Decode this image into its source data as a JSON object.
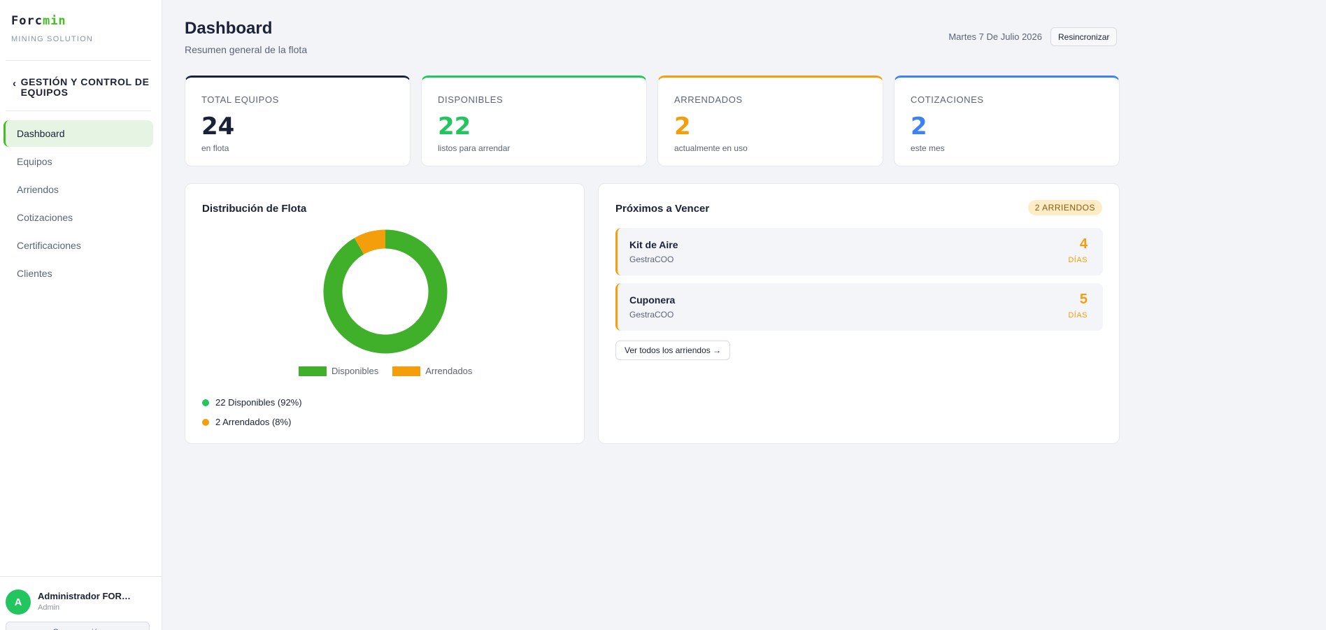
{
  "sidebar": {
    "logo_main": "Forc",
    "logo_accent": "min",
    "logo_sub": "MINING SOLUTION",
    "module_label": "GESTIÓN Y CONTROL DE EQUIPOS",
    "items": [
      {
        "label": "Dashboard",
        "active": true
      },
      {
        "label": "Equipos"
      },
      {
        "label": "Arriendos"
      },
      {
        "label": "Cotizaciones"
      },
      {
        "label": "Certificaciones"
      },
      {
        "label": "Clientes"
      }
    ],
    "user": {
      "initial": "A",
      "name": "Administrador FORC...",
      "role": "Admin",
      "logout_label": "Cerrar sesión"
    }
  },
  "header": {
    "title": "Dashboard",
    "subtitle": "Resumen general de la flota",
    "date": "Martes 7 De Julio 2026",
    "resync_label": "Resincronizar"
  },
  "stats": [
    {
      "label": "TOTAL EQUIPOS",
      "value": "24",
      "note": "en flota",
      "color": "#1a2138"
    },
    {
      "label": "DISPONIBLES",
      "value": "22",
      "note": "listos para arrendar",
      "color": "#22c55e"
    },
    {
      "label": "ARRENDADOS",
      "value": "2",
      "note": "actualmente en uso",
      "color": "#f59e0b"
    },
    {
      "label": "COTIZACIONES",
      "value": "2",
      "note": "este mes",
      "color": "#3b82f6"
    }
  ],
  "distribution": {
    "title": "Distribución de Flota",
    "summary": [
      "22 Disponibles (92%)",
      "2 Arrendados (8%)"
    ]
  },
  "chart_data": {
    "type": "pie",
    "categories": [
      "Disponibles",
      "Arrendados"
    ],
    "values": [
      22,
      2
    ],
    "colors": [
      "#40b02b",
      "#f59e0b"
    ],
    "donut": true,
    "legend": "bottom"
  },
  "expiring": {
    "title": "Próximos a Vencer",
    "badge": "2 ARRIENDOS",
    "items": [
      {
        "name": "Kit de Aire",
        "client": "GestraCOO",
        "days": "4",
        "unit": "DÍAS"
      },
      {
        "name": "Cuponera",
        "client": "GestraCOO",
        "days": "5",
        "unit": "DÍAS"
      }
    ],
    "view_all_label": "Ver todos los arriendos →"
  }
}
